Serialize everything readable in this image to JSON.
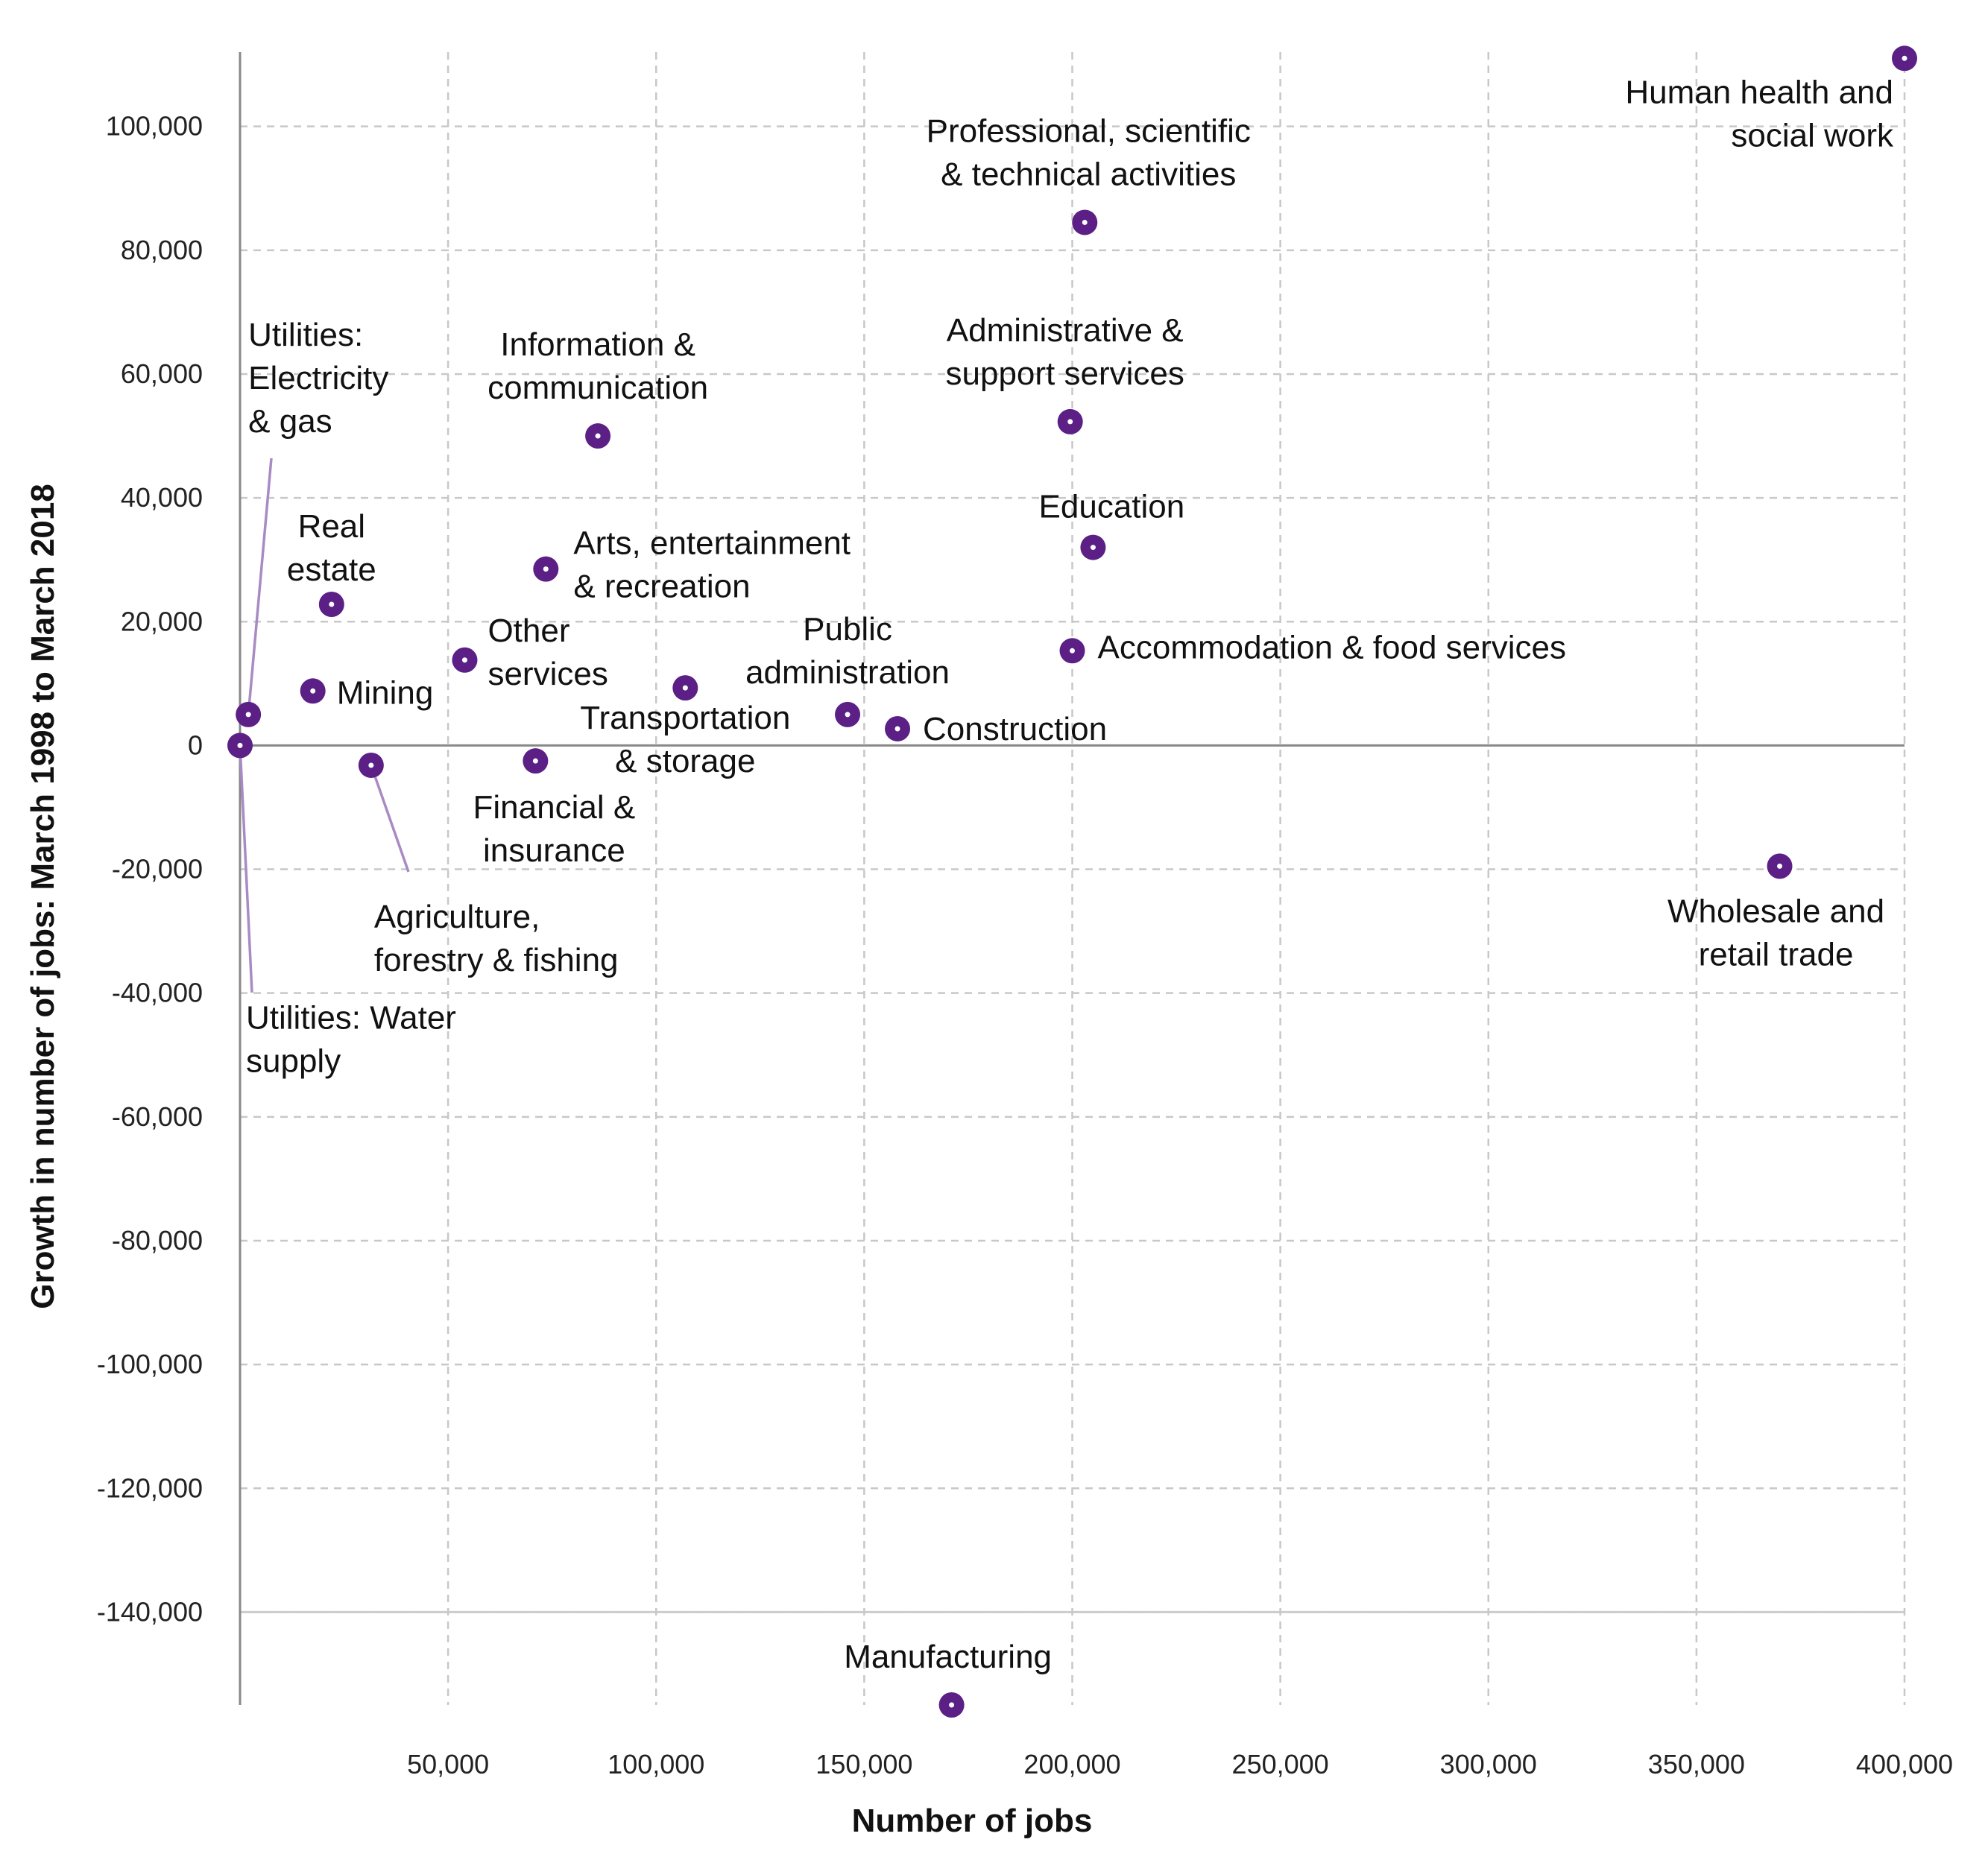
{
  "colors": {
    "point": "#5b1f86",
    "point_center": "#ffffff",
    "leader": "#a98bc4",
    "grid": "#c8c8c8",
    "axis": "#888888"
  },
  "chart_data": {
    "type": "scatter",
    "title": "",
    "xlabel": "Number of jobs",
    "ylabel": "Growth in number of jobs: March 1998 to March 2018",
    "xlim": [
      0,
      400000
    ],
    "ylim": [
      -155000,
      112000
    ],
    "grid": true,
    "x_ticks": [
      {
        "value": 50000,
        "label": "50,000"
      },
      {
        "value": 100000,
        "label": "100,000"
      },
      {
        "value": 150000,
        "label": "150,000"
      },
      {
        "value": 200000,
        "label": "200,000"
      },
      {
        "value": 250000,
        "label": "250,000"
      },
      {
        "value": 300000,
        "label": "300,000"
      },
      {
        "value": 350000,
        "label": "350,000"
      },
      {
        "value": 400000,
        "label": "400,000"
      }
    ],
    "y_ticks": [
      {
        "value": 100000,
        "label": "100,000"
      },
      {
        "value": 80000,
        "label": "80,000"
      },
      {
        "value": 60000,
        "label": "60,000"
      },
      {
        "value": 40000,
        "label": "40,000"
      },
      {
        "value": 20000,
        "label": "20,000"
      },
      {
        "value": 0,
        "label": "0"
      },
      {
        "value": -20000,
        "label": "-20,000"
      },
      {
        "value": -40000,
        "label": "-40,000"
      },
      {
        "value": -60000,
        "label": "-60,000"
      },
      {
        "value": -80000,
        "label": "-80,000"
      },
      {
        "value": -100000,
        "label": "-100,000"
      },
      {
        "value": -120000,
        "label": "-120,000"
      },
      {
        "value": -140000,
        "label": "-140,000"
      }
    ],
    "points": [
      {
        "label": [
          "Human health and",
          "social work"
        ],
        "x": 400000,
        "y": 111000
      },
      {
        "label": [
          "Professional, scientific",
          "& technical activities"
        ],
        "x": 203000,
        "y": 84500
      },
      {
        "label": [
          "Administrative &",
          "support services"
        ],
        "x": 199500,
        "y": 52300
      },
      {
        "label": [
          "Information &",
          "communication"
        ],
        "x": 86000,
        "y": 50000
      },
      {
        "label": [
          "Education"
        ],
        "x": 205000,
        "y": 32000
      },
      {
        "label": [
          "Arts, entertainment",
          "& recreation"
        ],
        "x": 73500,
        "y": 28500
      },
      {
        "label": [
          "Real",
          "estate"
        ],
        "x": 22000,
        "y": 22800
      },
      {
        "label": [
          "Accommodation & food services"
        ],
        "x": 200000,
        "y": 15300
      },
      {
        "label": [
          "Other",
          "services"
        ],
        "x": 54000,
        "y": 13800
      },
      {
        "label": [
          "Transportation",
          "& storage"
        ],
        "x": 107000,
        "y": 9300
      },
      {
        "label": [
          "Mining"
        ],
        "x": 17500,
        "y": 8800
      },
      {
        "label": [
          "Public",
          "administration"
        ],
        "x": 146000,
        "y": 5000
      },
      {
        "label": [
          "Utilities:",
          "Electricity",
          "& gas"
        ],
        "x": 2000,
        "y": 5000
      },
      {
        "label": [
          "Construction"
        ],
        "x": 158000,
        "y": 2700
      },
      {
        "label": [
          "Utilities: Water",
          "supply"
        ],
        "x": 0,
        "y": 0
      },
      {
        "label": [
          "Financial &",
          "insurance"
        ],
        "x": 71000,
        "y": -2500
      },
      {
        "label": [
          "Agriculture,",
          "forestry & fishing"
        ],
        "x": 31500,
        "y": -3200
      },
      {
        "label": [
          "Wholesale and",
          "retail trade"
        ],
        "x": 370000,
        "y": -19500
      },
      {
        "label": [
          "Manufacturing"
        ],
        "x": 171000,
        "y": -155000
      }
    ]
  }
}
